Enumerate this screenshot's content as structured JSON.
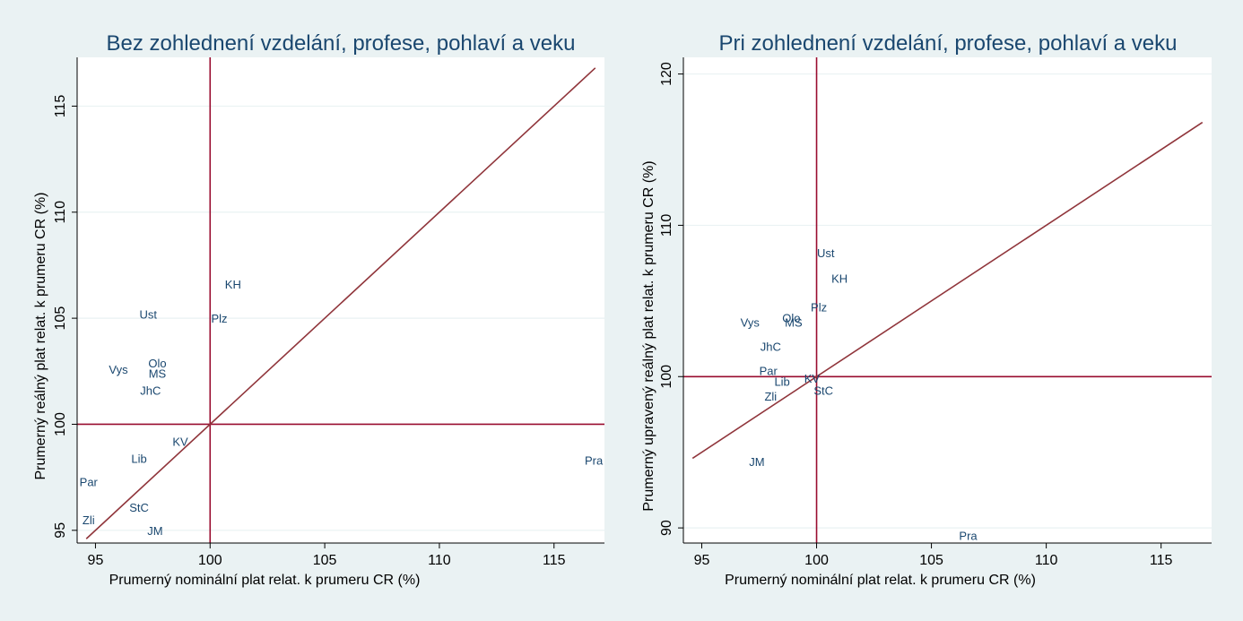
{
  "chart_data": [
    {
      "type": "scatter",
      "title": "Bez zohlednení vzdelání, profese, pohlaví a veku",
      "xlabel": "Prumerný nominální plat relat. k prumeru CR (%)",
      "ylabel": "Prumerný reálný plat relat. k prumeru CR (%)",
      "xlim": [
        94.2,
        117.2
      ],
      "ylim": [
        94.4,
        117.3
      ],
      "xticks": [
        95,
        100,
        105,
        110,
        115
      ],
      "yticks": [
        95,
        100,
        105,
        110,
        115
      ],
      "grid": true,
      "reference_lines": {
        "x": 100,
        "y": 100
      },
      "diagonal": {
        "from": [
          94.6,
          94.6
        ],
        "to": [
          116.8,
          116.8
        ]
      },
      "points": [
        {
          "label": "KH",
          "x": 101.0,
          "y": 106.6
        },
        {
          "label": "Ust",
          "x": 97.3,
          "y": 105.2
        },
        {
          "label": "Plz",
          "x": 100.4,
          "y": 105.0
        },
        {
          "label": "Olo",
          "x": 97.7,
          "y": 102.9
        },
        {
          "label": "Vys",
          "x": 96.0,
          "y": 102.6
        },
        {
          "label": "MS",
          "x": 97.7,
          "y": 102.4
        },
        {
          "label": "JhC",
          "x": 97.4,
          "y": 101.6
        },
        {
          "label": "KV",
          "x": 98.7,
          "y": 99.2
        },
        {
          "label": "Lib",
          "x": 96.9,
          "y": 98.4
        },
        {
          "label": "Par",
          "x": 94.7,
          "y": 97.3
        },
        {
          "label": "StC",
          "x": 96.9,
          "y": 96.1
        },
        {
          "label": "Zli",
          "x": 94.7,
          "y": 95.5
        },
        {
          "label": "JM",
          "x": 97.6,
          "y": 95.0
        },
        {
          "label": "Pra",
          "x": 116.8,
          "y": 98.3
        }
      ]
    },
    {
      "type": "scatter",
      "title": "Pri zohlednení vzdelání, profese, pohlaví a veku",
      "xlabel": "Prumerný nominální plat relat. k prumeru CR (%)",
      "ylabel": "Prumerný upravený reálný plat relat. k prumeru CR (%)",
      "xlim": [
        94.2,
        117.2
      ],
      "ylim": [
        89.0,
        121.1
      ],
      "xticks": [
        95,
        100,
        105,
        110,
        115
      ],
      "yticks": [
        90,
        100,
        110,
        120
      ],
      "grid": true,
      "reference_lines": {
        "x": 100,
        "y": 100
      },
      "diagonal": {
        "from": [
          94.6,
          94.6
        ],
        "to": [
          116.8,
          116.8
        ]
      },
      "points": [
        {
          "label": "Ust",
          "x": 100.4,
          "y": 108.2
        },
        {
          "label": "KH",
          "x": 101.0,
          "y": 106.5
        },
        {
          "label": "Plz",
          "x": 100.1,
          "y": 104.6
        },
        {
          "label": "Olo",
          "x": 98.9,
          "y": 103.9
        },
        {
          "label": "MS",
          "x": 99.0,
          "y": 103.6
        },
        {
          "label": "Vys",
          "x": 97.1,
          "y": 103.6
        },
        {
          "label": "JhC",
          "x": 98.0,
          "y": 102.0
        },
        {
          "label": "Par",
          "x": 97.9,
          "y": 100.4
        },
        {
          "label": "KV",
          "x": 99.8,
          "y": 99.9
        },
        {
          "label": "Lib",
          "x": 98.5,
          "y": 99.7
        },
        {
          "label": "StC",
          "x": 100.3,
          "y": 99.1
        },
        {
          "label": "Zli",
          "x": 98.0,
          "y": 98.7
        },
        {
          "label": "JM",
          "x": 97.4,
          "y": 94.4
        },
        {
          "label": "Pra",
          "x": 106.6,
          "y": 89.5
        }
      ]
    }
  ]
}
